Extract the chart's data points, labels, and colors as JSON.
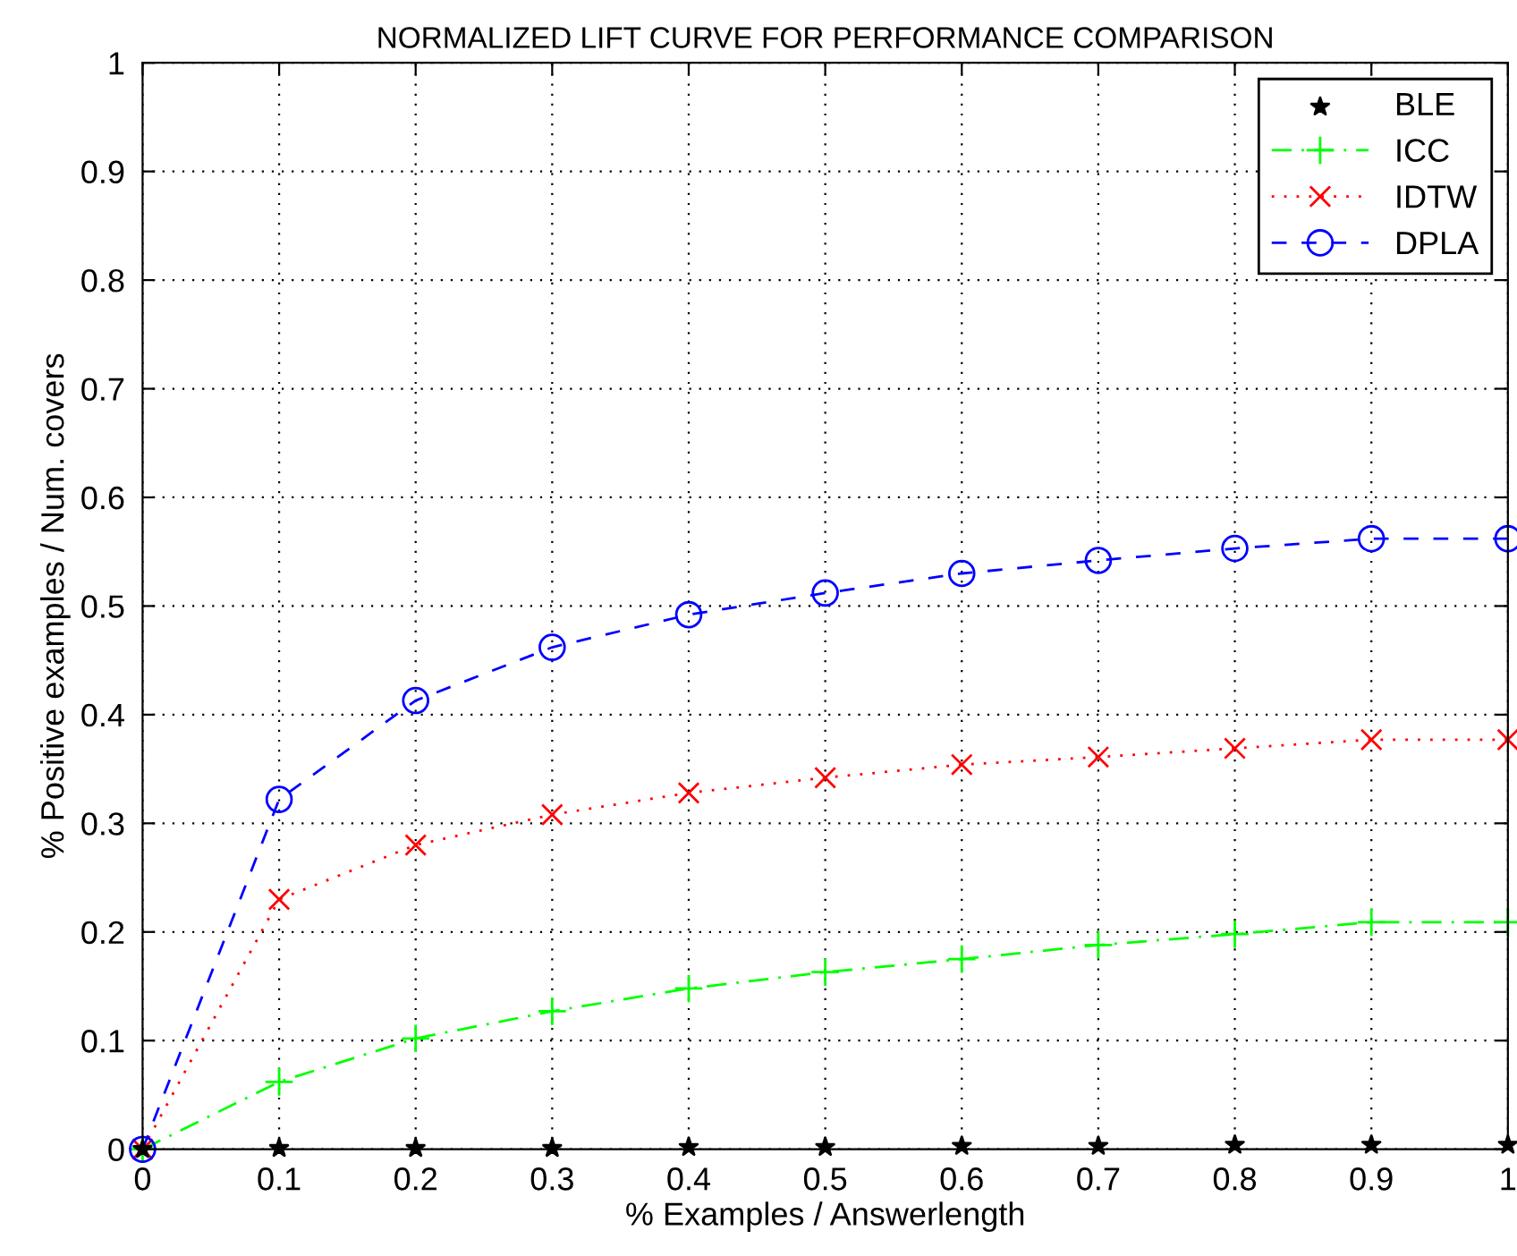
{
  "chart_data": {
    "type": "line",
    "title": "NORMALIZED LIFT CURVE FOR PERFORMANCE COMPARISON",
    "xlabel": "% Examples / Answerlength",
    "ylabel": "% Positive examples / Num. covers",
    "x": [
      0,
      0.1,
      0.2,
      0.3,
      0.4,
      0.5,
      0.6,
      0.7,
      0.8,
      0.9,
      1
    ],
    "series": [
      {
        "name": "BLE",
        "type": "scatter",
        "color": "#000000",
        "marker": "star",
        "values": [
          0,
          0.001,
          0.001,
          0.001,
          0.002,
          0.002,
          0.003,
          0.003,
          0.004,
          0.004,
          0.004
        ]
      },
      {
        "name": "ICC",
        "color": "#00ff00",
        "marker": "plus",
        "line_style": "dashdot",
        "values": [
          0,
          0.062,
          0.102,
          0.127,
          0.148,
          0.163,
          0.175,
          0.188,
          0.198,
          0.209,
          0.209
        ]
      },
      {
        "name": "IDTW",
        "color": "#ff0000",
        "marker": "cross",
        "line_style": "dotted",
        "values": [
          0,
          0.23,
          0.28,
          0.308,
          0.328,
          0.342,
          0.354,
          0.361,
          0.369,
          0.377,
          0.377
        ]
      },
      {
        "name": "DPLA",
        "color": "#0000ff",
        "marker": "circle",
        "line_style": "dashed",
        "values": [
          0,
          0.322,
          0.413,
          0.462,
          0.492,
          0.512,
          0.53,
          0.542,
          0.553,
          0.562,
          0.562
        ]
      }
    ],
    "xlim": [
      0,
      1
    ],
    "ylim": [
      0,
      1
    ],
    "xticks": [
      0,
      0.1,
      0.2,
      0.3,
      0.4,
      0.5,
      0.6,
      0.7,
      0.8,
      0.9,
      1
    ],
    "yticks": [
      0,
      0.1,
      0.2,
      0.3,
      0.4,
      0.5,
      0.6,
      0.7,
      0.8,
      0.9,
      1
    ],
    "grid": true,
    "legend": "top right"
  }
}
